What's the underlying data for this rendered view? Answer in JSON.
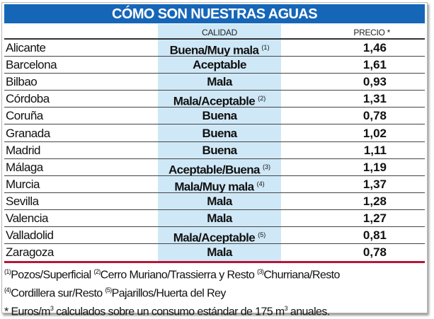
{
  "title": "CÓMO SON NUESTRAS AGUAS",
  "headers": {
    "calidad": "CALIDAD",
    "precio": "PRECIO *"
  },
  "colors": {
    "title_bg": "#1666b8",
    "calidad_bg": "#cfe8f7",
    "rule": "#b5163b"
  },
  "rows": [
    {
      "city": "Alicante",
      "calidad": "Buena/Muy mala",
      "note": "(1)",
      "precio": "1,46"
    },
    {
      "city": "Barcelona",
      "calidad": "Aceptable",
      "note": "",
      "precio": "1,61"
    },
    {
      "city": "Bilbao",
      "calidad": "Mala",
      "note": "",
      "precio": "0,93"
    },
    {
      "city": "Córdoba",
      "calidad": "Mala/Aceptable",
      "note": "(2)",
      "precio": "1,31"
    },
    {
      "city": "Coruña",
      "calidad": "Buena",
      "note": "",
      "precio": "0,78"
    },
    {
      "city": "Granada",
      "calidad": "Buena",
      "note": "",
      "precio": "1,02"
    },
    {
      "city": "Madrid",
      "calidad": "Buena",
      "note": "",
      "precio": "1,11"
    },
    {
      "city": "Málaga",
      "calidad": "Aceptable/Buena",
      "note": "(3)",
      "precio": "1,19"
    },
    {
      "city": "Murcia",
      "calidad": "Mala/Muy mala",
      "note": "(4)",
      "precio": "1,37"
    },
    {
      "city": "Sevilla",
      "calidad": "Mala",
      "note": "",
      "precio": "1,28"
    },
    {
      "city": "Valencia",
      "calidad": "Mala",
      "note": "",
      "precio": "1,27"
    },
    {
      "city": "Valladolid",
      "calidad": "Mala/Aceptable",
      "note": "(5)",
      "precio": "0,81"
    },
    {
      "city": "Zaragoza",
      "calidad": "Mala",
      "note": "",
      "precio": "0,78"
    }
  ],
  "footnotes": {
    "n1_mark": "(1)",
    "n1": "Pozos/Superficial ",
    "n2_mark": "(2)",
    "n2": "Cerro Muriano/Trassierra y Resto ",
    "n3_mark": "(3)",
    "n3": "Churriana/Resto",
    "n4_mark": "(4)",
    "n4": "Cordillera sur/Resto ",
    "n5_mark": "(5)",
    "n5": "Pajarillos/Huerta del Rey",
    "star_a": "* Euros/m",
    "star_sup1": "3",
    "star_b": " calculados sobre un consumo estándar de 175 m",
    "star_sup2": "3",
    "star_c": " anuales."
  }
}
